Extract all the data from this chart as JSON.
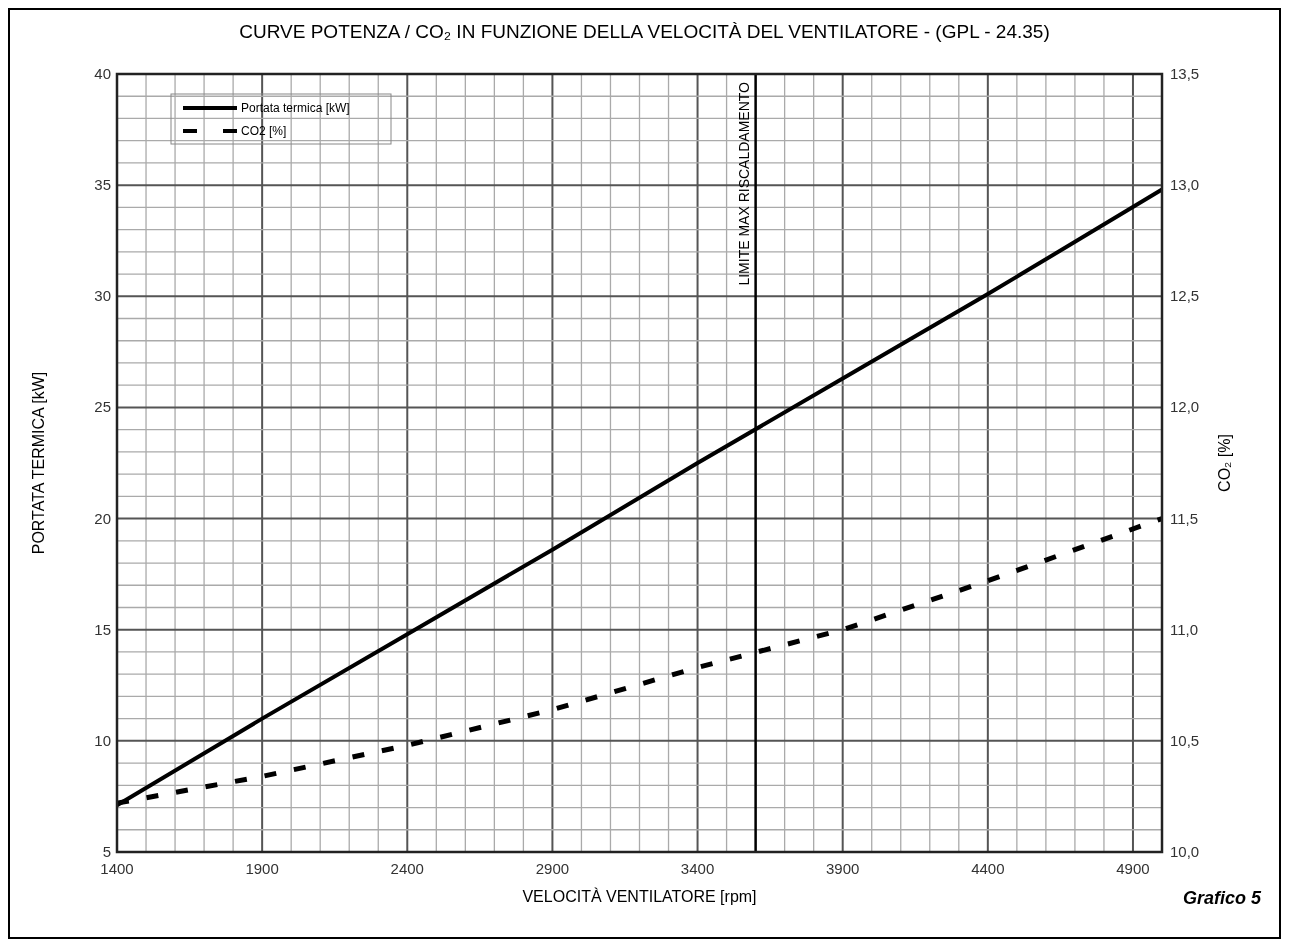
{
  "chart_data": {
    "type": "line",
    "title": "CURVE POTENZA / CO₂ IN FUNZIONE DELLA VELOCITÀ DEL VENTILATORE - (GPL - 24.35)",
    "xlabel": "VELOCITÀ VENTILATORE [rpm]",
    "ylabel": "PORTATA TERMICA [kW]",
    "y2label": "CO₂ [%]",
    "x": [
      1400,
      1900,
      2400,
      2900,
      3400,
      3900,
      4400,
      5000
    ],
    "series": [
      {
        "name": "Portata termica [kW]",
        "color": "#000000",
        "line_style": "solid",
        "values": [
          7.1,
          11.0,
          14.8,
          18.6,
          22.5,
          26.3,
          30.1,
          34.8
        ]
      },
      {
        "name": "CO2 [%]",
        "color": "#000000",
        "line_style": "dashed",
        "axis": "y2",
        "values": [
          10.22,
          10.34,
          10.48,
          10.64,
          10.83,
          11.0,
          11.22,
          11.5
        ]
      }
    ],
    "xlim": [
      1400,
      5000
    ],
    "xticks": [
      1400,
      1900,
      2400,
      2900,
      3400,
      3900,
      4400,
      4900
    ],
    "ylim": [
      5,
      40
    ],
    "yticks": [
      5,
      10,
      15,
      20,
      25,
      30,
      35,
      40
    ],
    "y2lim": [
      10,
      13.5
    ],
    "y2ticks": [
      {
        "value": 10,
        "label": "10,0"
      },
      {
        "value": 10.5,
        "label": "10,5"
      },
      {
        "value": 11,
        "label": "11,0"
      },
      {
        "value": 11.5,
        "label": "11,5"
      },
      {
        "value": 12,
        "label": "12,0"
      },
      {
        "value": 12.5,
        "label": "12,5"
      },
      {
        "value": 13,
        "label": "13,0"
      },
      {
        "value": 13.5,
        "label": "13,5"
      }
    ],
    "ref_lines": [
      {
        "axis": "x",
        "value": 3600,
        "label": "LIMITE MAX RISCALDAMENTO",
        "color": "#000000"
      }
    ],
    "annotations": [
      "Grafico 5"
    ],
    "grid": true,
    "legend": "top left"
  }
}
